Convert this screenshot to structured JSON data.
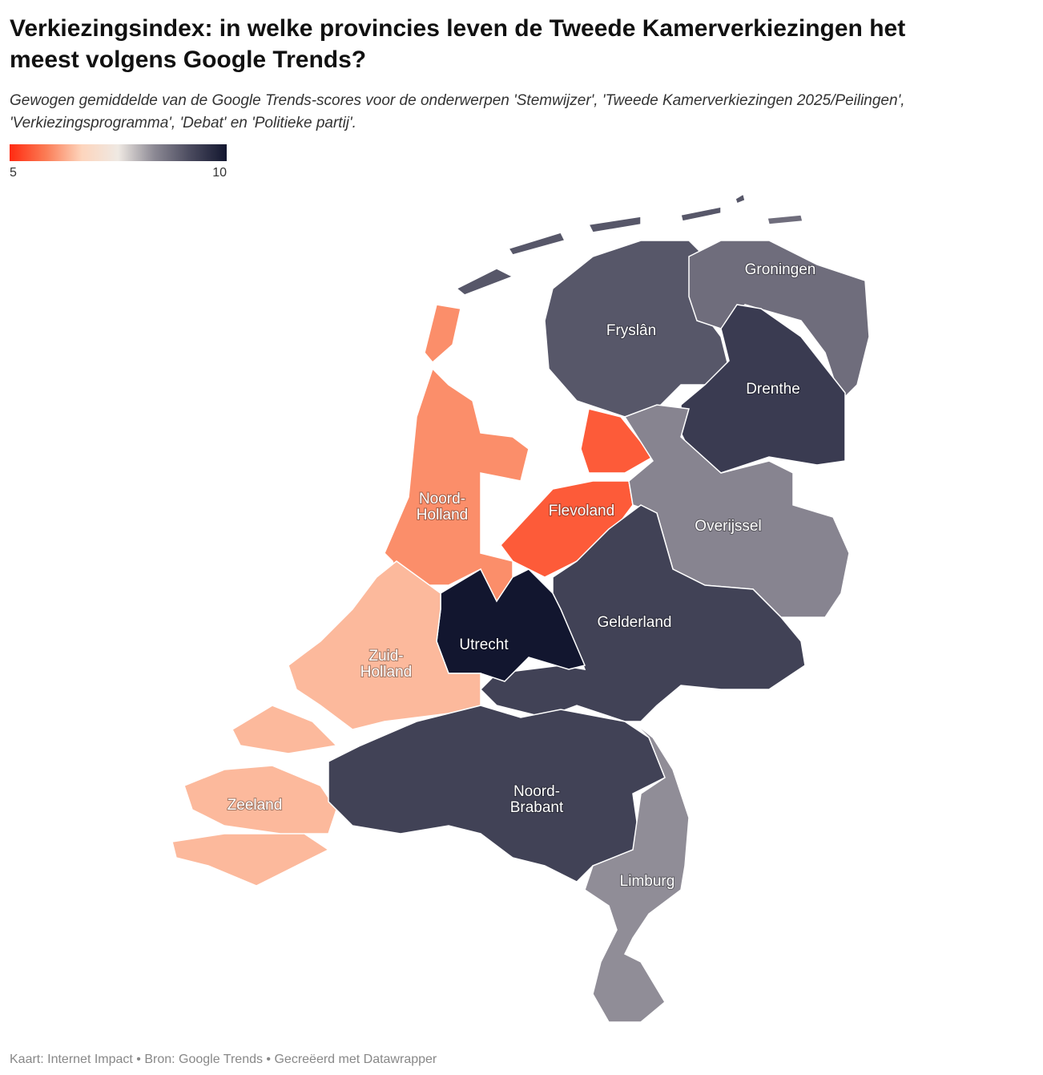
{
  "header": {
    "title_lines": [
      "Verkiezingsindex: in welke provincies leven de Tweede Kamerverkiezingen het",
      "meest volgens Google Trends?"
    ],
    "subtitle_lines": [
      "Gewogen gemiddelde van de Google Trends-scores voor de onderwerpen 'Stemwijzer', 'Tweede Kamerverkiezingen 2025/Peilingen',",
      "'Verkiezingsprogramma', 'Debat' en 'Politieke partij'."
    ]
  },
  "legend": {
    "min": 5,
    "max": 10,
    "colors": [
      "#ff2a10",
      "#fb7c55",
      "#fdd5bd",
      "#efe9e3",
      "#8c8994",
      "#4a4a5e",
      "#12162f"
    ]
  },
  "provinces": [
    {
      "label": [
        "Noord-",
        "Holland"
      ],
      "value": 6.0
    },
    {
      "label": [
        "Flevoland"
      ],
      "value": 5.5
    },
    {
      "label": [
        "Fryslân"
      ],
      "value": 9.0
    },
    {
      "label": [
        "Groningen"
      ],
      "value": 8.7
    },
    {
      "label": [
        "Drenthe"
      ],
      "value": 9.4
    },
    {
      "label": [
        "Overijssel"
      ],
      "value": 8.4
    },
    {
      "label": [
        "Gelderland"
      ],
      "value": 9.3
    },
    {
      "label": [
        "Utrecht"
      ],
      "value": 10
    },
    {
      "label": [
        "Zuid-",
        "Holland"
      ],
      "value": 6.4
    },
    {
      "label": [
        "Zeeland"
      ],
      "value": 6.4
    },
    {
      "label": [
        "Noord-",
        "Brabant"
      ],
      "value": 9.3
    },
    {
      "label": [
        "Limburg"
      ],
      "value": 8.3
    }
  ],
  "footer": "Kaart: Internet Impact • Bron: Google Trends • Gecreëerd met Datawrapper"
}
